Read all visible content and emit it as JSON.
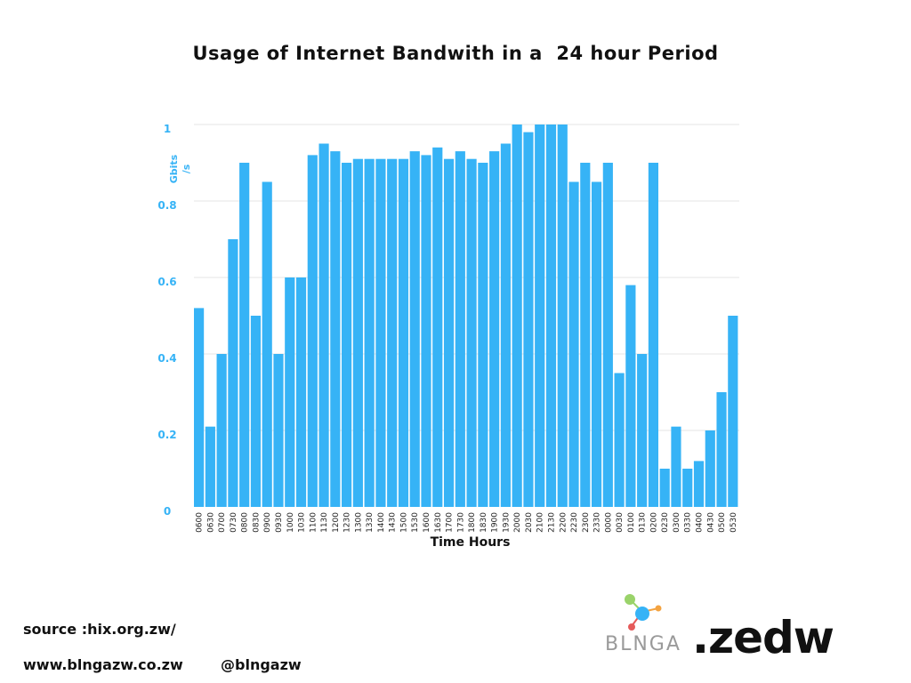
{
  "colors": {
    "bar": "#36b3f6",
    "axis_text": "#36b3f6",
    "grid": "#e6e6e6"
  },
  "chart_data": {
    "type": "bar",
    "title": "Usage of Internet Bandwith in a  24 hour Period",
    "xlabel": "Time Hours",
    "ylabel": "Gbits /s",
    "ylim": [
      0,
      1
    ],
    "yticks": [
      "0",
      "0.2",
      "0.4",
      "0.6",
      "0.8",
      "1"
    ],
    "grid": true,
    "categories": [
      "0600",
      "0630",
      "0700",
      "0730",
      "0800",
      "0830",
      "0900",
      "0930",
      "1000",
      "1030",
      "1100",
      "1130",
      "1200",
      "1230",
      "1300",
      "1330",
      "1400",
      "1430",
      "1500",
      "1530",
      "1600",
      "1630",
      "1700",
      "1730",
      "1800",
      "1830",
      "1900",
      "1930",
      "2000",
      "2030",
      "2100",
      "2130",
      "2200",
      "2230",
      "2300",
      "2330",
      "0000",
      "0030",
      "0100",
      "0130",
      "0200",
      "0230",
      "0300",
      "0330",
      "0400",
      "0430",
      "0500",
      "0530"
    ],
    "values": [
      0.52,
      0.21,
      0.4,
      0.7,
      0.9,
      0.5,
      0.85,
      0.4,
      0.6,
      0.6,
      0.92,
      0.95,
      0.93,
      0.9,
      0.91,
      0.91,
      0.91,
      0.91,
      0.91,
      0.93,
      0.92,
      0.94,
      0.91,
      0.93,
      0.91,
      0.9,
      0.93,
      0.95,
      1.0,
      0.98,
      1.0,
      1.0,
      1.0,
      0.85,
      0.9,
      0.85,
      0.9,
      0.35,
      0.58,
      0.4,
      0.9,
      0.1,
      0.21,
      0.1,
      0.12,
      0.2,
      0.3,
      0.5
    ]
  },
  "footer": {
    "source": "source :hix.org.zw/",
    "website": "www.blngazw.co.zw",
    "handle": "@blngazw"
  },
  "brand": {
    "wordmark": "BLNGA",
    "zedw": ".zedw",
    "logo_icon": "molecule-icon"
  }
}
